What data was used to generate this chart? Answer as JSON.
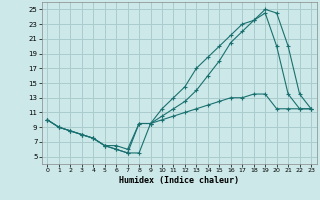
{
  "xlabel": "Humidex (Indice chaleur)",
  "bg_color": "#cce8e8",
  "grid_color": "#aacccc",
  "line_color": "#1a7070",
  "xlim": [
    -0.5,
    23.5
  ],
  "ylim": [
    4.0,
    26.0
  ],
  "xticks": [
    0,
    1,
    2,
    3,
    4,
    5,
    6,
    7,
    8,
    9,
    10,
    11,
    12,
    13,
    14,
    15,
    16,
    17,
    18,
    19,
    20,
    21,
    22,
    23
  ],
  "yticks": [
    5,
    7,
    9,
    11,
    13,
    15,
    17,
    19,
    21,
    23,
    25
  ],
  "line1_x": [
    0,
    1,
    2,
    3,
    4,
    5,
    6,
    7,
    8,
    9,
    10,
    11,
    12,
    13,
    14,
    15,
    16,
    17,
    18,
    19,
    20,
    21,
    22,
    23
  ],
  "line1_y": [
    10,
    9,
    8.5,
    8,
    7.5,
    6.5,
    6,
    5.5,
    5.5,
    9.5,
    10.5,
    11.5,
    12.5,
    14,
    16,
    18,
    20.5,
    22,
    23.5,
    24.5,
    20,
    13.5,
    11.5,
    11.5
  ],
  "line2_x": [
    0,
    1,
    2,
    3,
    4,
    5,
    6,
    7,
    8,
    9,
    10,
    11,
    12,
    13,
    14,
    15,
    16,
    17,
    18,
    19,
    20,
    21,
    22,
    23
  ],
  "line2_y": [
    10,
    9,
    8.5,
    8,
    7.5,
    6.5,
    6,
    5.5,
    9.5,
    9.5,
    11.5,
    13,
    14.5,
    17,
    18.5,
    20,
    21.5,
    23,
    23.5,
    25,
    24.5,
    20,
    13.5,
    11.5
  ],
  "line3_x": [
    0,
    1,
    2,
    3,
    4,
    5,
    6,
    7,
    8,
    9,
    10,
    11,
    12,
    13,
    14,
    15,
    16,
    17,
    18,
    19,
    20,
    21,
    22,
    23
  ],
  "line3_y": [
    10,
    9,
    8.5,
    8,
    7.5,
    6.5,
    6.5,
    6,
    9.5,
    9.5,
    10,
    10.5,
    11,
    11.5,
    12,
    12.5,
    13,
    13,
    13.5,
    13.5,
    11.5,
    11.5,
    11.5,
    11.5
  ]
}
